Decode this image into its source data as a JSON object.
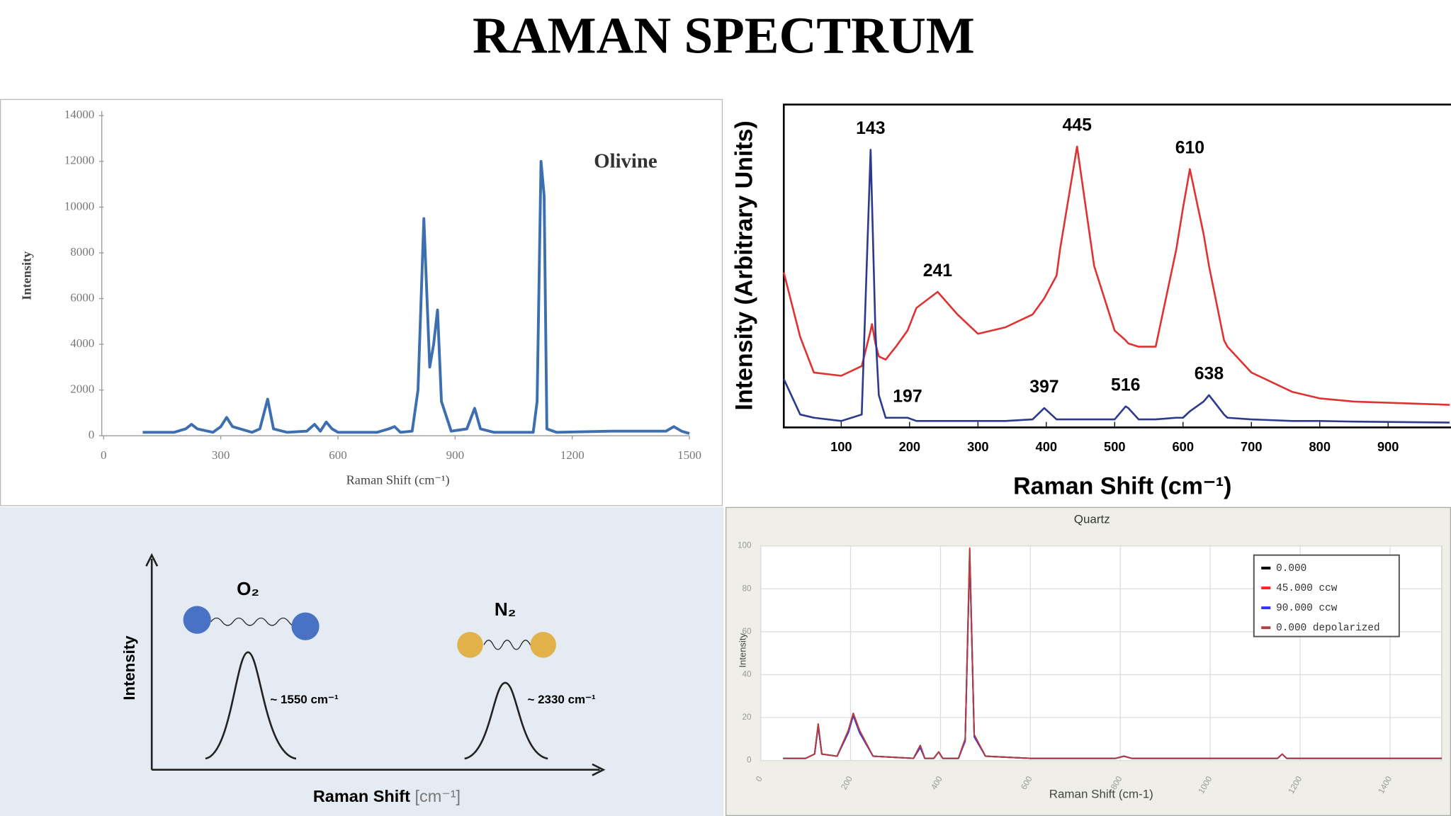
{
  "title": "RAMAN SPECTRUM",
  "chart_data": [
    {
      "type": "line",
      "annotation": "Olivine",
      "x_label": "Raman Shift (cm⁻¹)",
      "y_label": "Intensity",
      "x": [
        100,
        180,
        210,
        225,
        240,
        280,
        300,
        315,
        330,
        380,
        400,
        420,
        435,
        470,
        520,
        540,
        555,
        570,
        585,
        600,
        700,
        730,
        745,
        760,
        790,
        805,
        820,
        835,
        845,
        855,
        865,
        890,
        930,
        950,
        965,
        1000,
        1100,
        1110,
        1120,
        1128,
        1135,
        1160,
        1300,
        1440,
        1460,
        1480,
        1500
      ],
      "series": [
        {
          "color": "#3d6fb0",
          "values": [
            150,
            150,
            300,
            500,
            300,
            150,
            400,
            800,
            400,
            150,
            300,
            1600,
            300,
            150,
            200,
            500,
            200,
            600,
            300,
            150,
            150,
            300,
            400,
            150,
            200,
            2000,
            9500,
            3000,
            4000,
            5500,
            1500,
            200,
            300,
            1200,
            300,
            150,
            150,
            1500,
            12000,
            10500,
            300,
            150,
            200,
            200,
            400,
            200,
            100
          ]
        }
      ],
      "xlim": [
        0,
        1500
      ],
      "xticks": [
        0,
        300,
        600,
        900,
        1200,
        1500
      ],
      "ylim": [
        0,
        14000
      ],
      "yticks": [
        0,
        2000,
        4000,
        6000,
        8000,
        10000,
        12000,
        14000
      ]
    },
    {
      "type": "line",
      "x_label": "Raman Shift (cm⁻¹)",
      "y_label": "Intensity (Arbitrary Units)",
      "x": [
        16,
        40,
        60,
        100,
        130,
        143,
        145,
        150,
        155,
        165,
        180,
        197,
        210,
        241,
        270,
        300,
        340,
        380,
        397,
        415,
        420,
        445,
        470,
        500,
        516,
        520,
        535,
        560,
        590,
        600,
        610,
        630,
        638,
        660,
        665,
        700,
        760,
        800,
        850,
        990
      ],
      "series": [
        {
          "color": "#e03232",
          "peaks": [
            241,
            445,
            610
          ],
          "values": [
            48,
            28,
            17,
            16,
            19,
            30,
            32,
            26,
            22,
            21,
            25,
            30,
            37,
            42,
            35,
            29,
            31,
            35,
            40,
            47,
            55,
            87,
            50,
            30,
            27,
            26,
            25,
            25,
            55,
            68,
            80,
            60,
            50,
            27,
            25,
            17,
            11,
            9,
            8,
            7
          ]
        },
        {
          "color": "#2b3a8c",
          "peaks": [
            143,
            197,
            397,
            516,
            638
          ],
          "values": [
            15,
            4,
            3,
            2,
            4,
            86,
            70,
            30,
            10,
            3,
            3,
            3,
            2,
            2,
            2,
            2,
            2,
            2.5,
            6,
            2.5,
            2.5,
            2.5,
            2.5,
            2.5,
            6.5,
            6,
            2.5,
            2.5,
            3,
            3,
            5,
            8,
            10,
            4,
            3,
            2.5,
            2,
            2,
            1.8,
            1.5
          ]
        }
      ],
      "xlim": [
        16,
        992
      ],
      "xticks": [
        100,
        200,
        300,
        400,
        500,
        600,
        700,
        800,
        900
      ],
      "ylim": [
        0,
        100
      ]
    },
    {
      "type": "line",
      "title": "Quartz",
      "x_label": "Raman Shift (cm-1)",
      "y_label": "Intensity",
      "x": [
        50,
        100,
        120,
        128,
        136,
        170,
        195,
        206,
        220,
        250,
        340,
        355,
        365,
        385,
        396,
        405,
        440,
        455,
        465,
        475,
        500,
        600,
        790,
        808,
        825,
        1100,
        1150,
        1160,
        1170,
        1300,
        1515
      ],
      "series": [
        {
          "name": "0.000",
          "color": "#000000",
          "values": [
            1,
            1,
            3,
            16,
            3,
            2,
            13,
            21,
            13,
            2,
            1,
            7,
            1,
            1,
            4,
            1,
            1,
            10,
            95,
            12,
            2,
            1,
            1,
            2,
            1,
            1,
            1,
            3,
            1,
            1,
            1
          ]
        },
        {
          "name": "45.000 ccw",
          "color": "#ff2020",
          "values": [
            1,
            1,
            3,
            17,
            3,
            2,
            14,
            22,
            14,
            2,
            1,
            7,
            1,
            1,
            4,
            1,
            1,
            10,
            99,
            12,
            2,
            1,
            1,
            2,
            1,
            1,
            1,
            3,
            1,
            1,
            1
          ]
        },
        {
          "name": "90.000 ccw",
          "color": "#3030ff",
          "values": [
            1,
            1,
            3,
            16,
            3,
            2,
            13,
            21,
            13,
            2,
            1,
            6,
            1,
            1,
            4,
            1,
            1,
            9,
            96,
            11,
            2,
            1,
            1,
            2,
            1,
            1,
            1,
            3,
            1,
            1,
            1
          ]
        },
        {
          "name": "0.000 depolarized",
          "color": "#b04040",
          "values": [
            1,
            1,
            3,
            17,
            3,
            2,
            14,
            22,
            14,
            2,
            1,
            7,
            1,
            1,
            4,
            1,
            1,
            10,
            98,
            12,
            2,
            1,
            1,
            2,
            1,
            1,
            1,
            3,
            1,
            1,
            1
          ]
        }
      ],
      "xlim": [
        0,
        1515
      ],
      "xticks": [
        0,
        200,
        400,
        600,
        800,
        1000,
        1200,
        1400
      ],
      "ylim": [
        0,
        100
      ],
      "yticks": [
        0,
        20,
        40,
        60,
        80,
        100
      ],
      "grid": true
    }
  ],
  "diagram": {
    "y_label": "Intensity",
    "x_label": "Raman Shift",
    "x_unit": "[cm⁻¹]",
    "molecules": [
      {
        "name": "O₂",
        "shift": "~ 1550 cm⁻¹"
      },
      {
        "name": "N₂",
        "shift": "~ 2330 cm⁻¹"
      }
    ]
  }
}
